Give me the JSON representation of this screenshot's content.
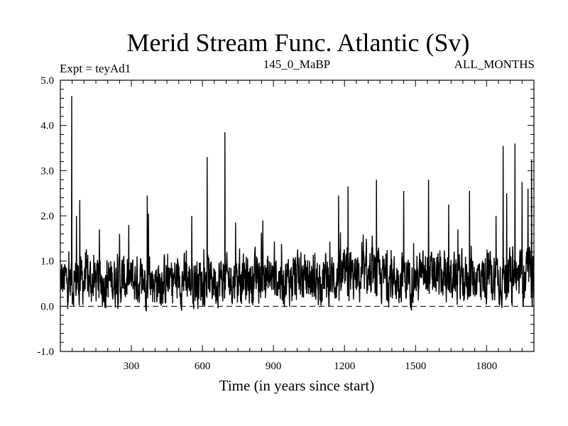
{
  "chart_data": {
    "type": "line",
    "title": "Merid Stream Func. Atlantic (Sv)",
    "header_left": "Expt = teyAd1",
    "header_center": "145_0_MaBP",
    "header_right": "ALL_MONTHS",
    "xlabel": "Time (in years since start)",
    "ylabel": "",
    "xlim": [
      0,
      2000
    ],
    "ylim": [
      -1.0,
      5.0
    ],
    "xticks": [
      300,
      600,
      900,
      1200,
      1500,
      1800
    ],
    "yticks": [
      -1.0,
      0.0,
      1.0,
      2.0,
      3.0,
      4.0,
      5.0
    ],
    "ytick_labels": [
      "-1.0",
      "0.0",
      "1.0",
      "2.0",
      "3.0",
      "4.0",
      "5.0"
    ],
    "reference_line": {
      "y": 0.0,
      "style": "dashed"
    },
    "series": [
      {
        "baseline_mean": 0.55,
        "noise_amplitude": 0.45,
        "peaks": [
          {
            "x": 48,
            "y": 4.65
          },
          {
            "x": 68,
            "y": 2.0
          },
          {
            "x": 82,
            "y": 2.35
          },
          {
            "x": 165,
            "y": 1.7
          },
          {
            "x": 250,
            "y": 1.6
          },
          {
            "x": 367,
            "y": 2.45
          },
          {
            "x": 372,
            "y": 2.05
          },
          {
            "x": 555,
            "y": 2.0
          },
          {
            "x": 620,
            "y": 3.3
          },
          {
            "x": 695,
            "y": 3.85
          },
          {
            "x": 740,
            "y": 1.85
          },
          {
            "x": 855,
            "y": 1.9
          },
          {
            "x": 1175,
            "y": 2.45
          },
          {
            "x": 1215,
            "y": 2.65
          },
          {
            "x": 1335,
            "y": 2.8
          },
          {
            "x": 1450,
            "y": 2.55
          },
          {
            "x": 1555,
            "y": 2.8
          },
          {
            "x": 1640,
            "y": 2.25
          },
          {
            "x": 1728,
            "y": 2.55
          },
          {
            "x": 1840,
            "y": 2.0
          },
          {
            "x": 1870,
            "y": 3.55
          },
          {
            "x": 1885,
            "y": 2.5
          },
          {
            "x": 1920,
            "y": 3.6
          },
          {
            "x": 1950,
            "y": 2.75
          },
          {
            "x": 1975,
            "y": 2.6
          },
          {
            "x": 1990,
            "y": 3.25
          }
        ]
      }
    ]
  }
}
